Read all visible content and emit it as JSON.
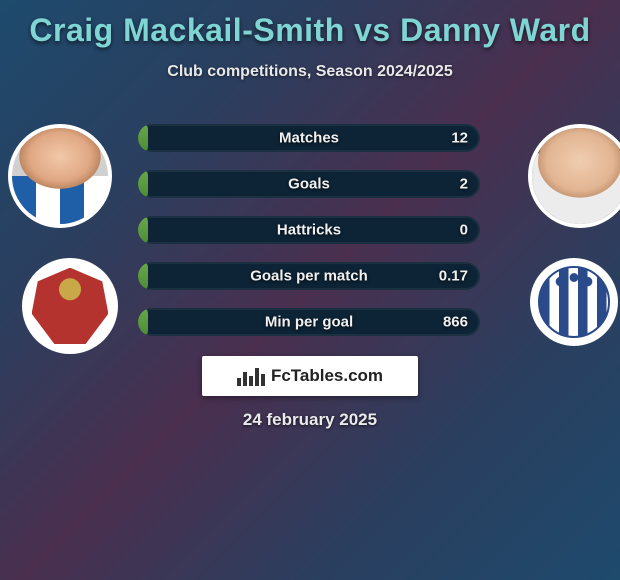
{
  "title": "Craig Mackail-Smith vs Danny Ward",
  "subtitle": "Club competitions, Season 2024/2025",
  "date": "24 february 2025",
  "brand": "FcTables.com",
  "bar_track_color": "#0d2436",
  "bar_fill_gradient": [
    "#6aa84f",
    "#4c8a34"
  ],
  "title_color": "#7fd4d4",
  "text_color": "#e8e8e8",
  "stats": [
    {
      "label": "Matches",
      "value": "12",
      "fill_pct": 3
    },
    {
      "label": "Goals",
      "value": "2",
      "fill_pct": 3
    },
    {
      "label": "Hattricks",
      "value": "0",
      "fill_pct": 3
    },
    {
      "label": "Goals per match",
      "value": "0.17",
      "fill_pct": 3
    },
    {
      "label": "Min per goal",
      "value": "866",
      "fill_pct": 3
    }
  ],
  "left_player": {
    "name": "Craig Mackail-Smith",
    "club": "Stevenage"
  },
  "right_player": {
    "name": "Danny Ward",
    "club": "Huddersfield Town"
  }
}
